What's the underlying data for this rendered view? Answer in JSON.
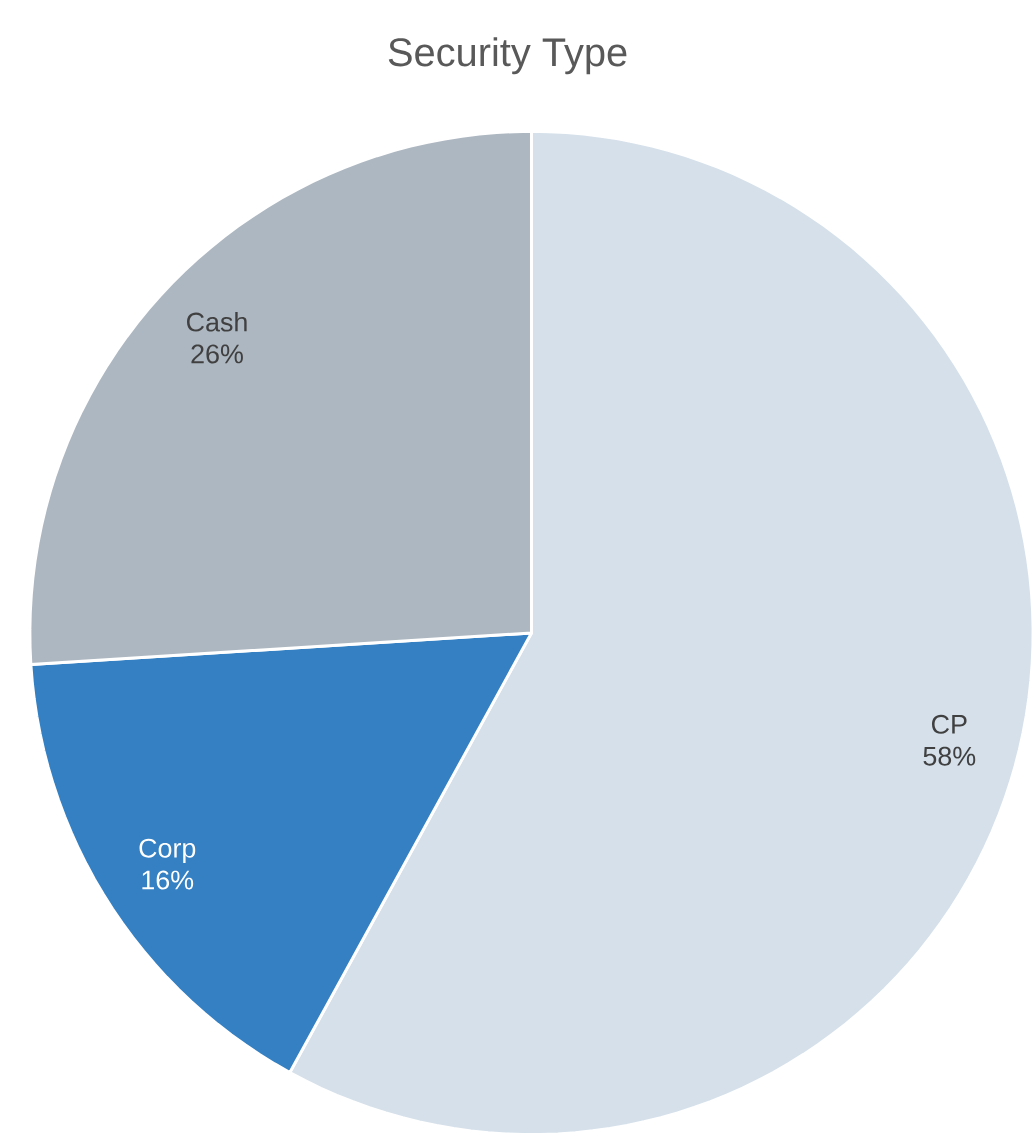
{
  "chart_data": {
    "type": "pie",
    "title": "Security Type",
    "categories": [
      "CP",
      "Corp",
      "Cash"
    ],
    "values": [
      58,
      16,
      26
    ],
    "colors": [
      "#d5e0ea",
      "#3480c3",
      "#adb7c1"
    ],
    "value_labels": [
      "58%",
      "16%",
      "26%"
    ]
  }
}
